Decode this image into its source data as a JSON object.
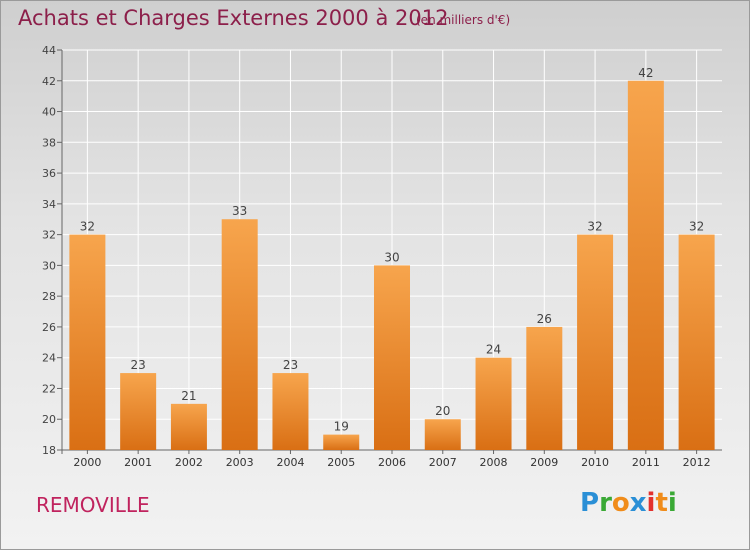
{
  "header": {
    "title": "Achats et Charges Externes 2000 à 2012",
    "unit": "(en milliers d'€)"
  },
  "footer": {
    "commune": "REMOVILLE",
    "logo_letters": [
      "P",
      "r",
      "o",
      "x",
      "i",
      "t",
      "i"
    ],
    "logo_colors": [
      "#2a8fd6",
      "#3aa935",
      "#f08c1a",
      "#2a8fd6",
      "#e3312d",
      "#f08c1a",
      "#3aa935"
    ]
  },
  "chart_data": {
    "type": "bar",
    "categories": [
      "2000",
      "2001",
      "2002",
      "2003",
      "2004",
      "2005",
      "2006",
      "2007",
      "2008",
      "2009",
      "2010",
      "2011",
      "2012"
    ],
    "values": [
      32,
      23,
      21,
      33,
      23,
      19,
      30,
      20,
      24,
      26,
      32,
      42,
      32
    ],
    "ylim": [
      18,
      44
    ],
    "yticks": [
      18,
      20,
      22,
      24,
      26,
      28,
      30,
      32,
      34,
      36,
      38,
      40,
      42,
      44
    ],
    "grid": true,
    "bar_color": "#f0902e"
  }
}
